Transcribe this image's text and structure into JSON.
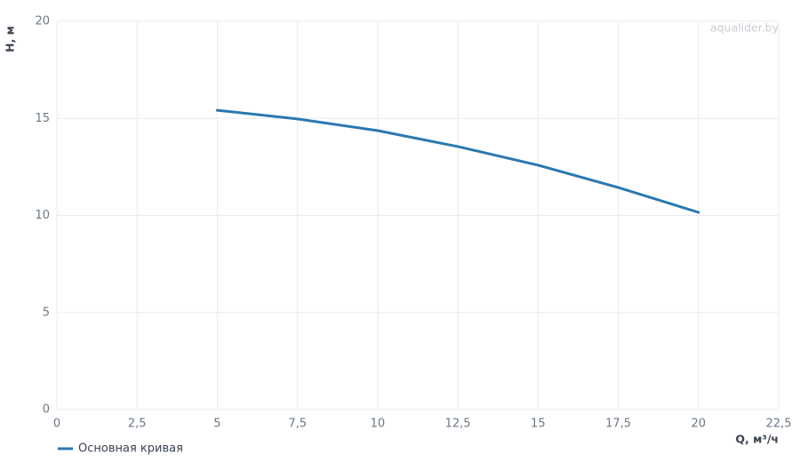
{
  "chart_data": {
    "type": "line",
    "ylabel": "H, м",
    "xlabel": "Q, м³/ч",
    "annotation": "aqualider.by",
    "x": [
      5,
      7.5,
      10,
      12.5,
      15,
      17.5,
      20
    ],
    "series": [
      {
        "name": "Основная кривая",
        "color": "#2a78b0",
        "values": [
          15.42,
          14.97,
          14.37,
          13.55,
          12.59,
          11.44,
          10.16
        ]
      }
    ],
    "xlim": [
      0,
      22.5
    ],
    "ylim": [
      0,
      20
    ],
    "xticks": [
      0,
      {
        "value": 2.5,
        "label": "2,5"
      },
      5,
      {
        "value": 7.5,
        "label": "7,5"
      },
      10,
      {
        "value": 12.5,
        "label": "12,5"
      },
      15,
      {
        "value": 17.5,
        "label": "17,5"
      },
      20,
      {
        "value": 22.5,
        "label": "22,5"
      }
    ],
    "yticks": [
      0,
      5,
      10,
      15,
      20
    ],
    "grid": true,
    "legend": "bottom-left"
  }
}
